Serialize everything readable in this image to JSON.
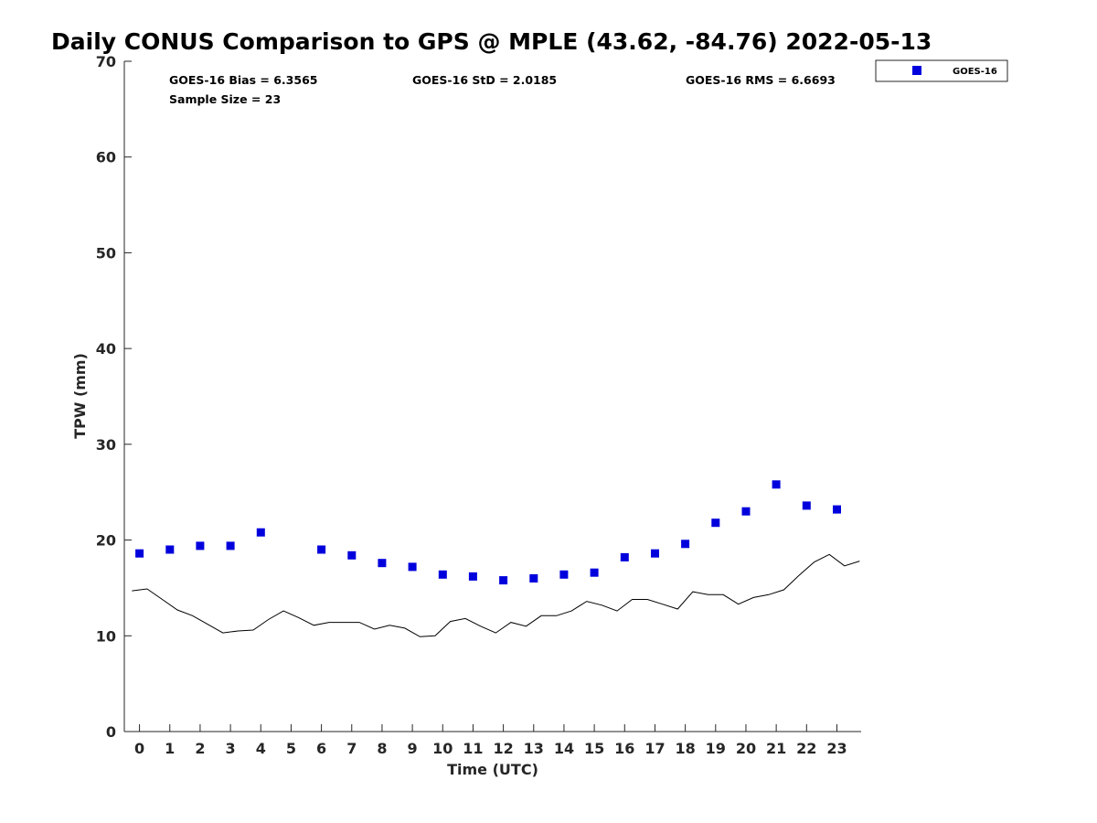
{
  "chart_data": {
    "type": "scatter",
    "title": "Daily CONUS Comparison to GPS @ MPLE (43.62, -84.76) 2022-05-13",
    "xlabel": "Time (UTC)",
    "ylabel": "TPW (mm)",
    "xlim": [
      -0.5,
      23.8
    ],
    "ylim": [
      0,
      70
    ],
    "xticks": [
      0,
      1,
      2,
      3,
      4,
      5,
      6,
      7,
      8,
      9,
      10,
      11,
      12,
      13,
      14,
      15,
      16,
      17,
      18,
      19,
      20,
      21,
      22,
      23
    ],
    "xtick_labels": [
      "0",
      "1",
      "2",
      "3",
      "4",
      "5",
      "6",
      "7",
      "8",
      "9",
      "10",
      "11",
      "12",
      "13",
      "14",
      "15",
      "16",
      "17",
      "18",
      "19",
      "20",
      "21",
      "22",
      "23"
    ],
    "yticks": [
      0,
      10,
      20,
      30,
      40,
      50,
      60,
      70
    ],
    "ytick_labels": [
      "0",
      "10",
      "20",
      "30",
      "40",
      "50",
      "60",
      "70"
    ],
    "grid": false,
    "legend_position": "top-right-outside",
    "stats": {
      "bias": "GOES-16 Bias = 6.3565",
      "std": "GOES-16 StD = 2.0185",
      "rms": "GOES-16 RMS = 6.6693",
      "sample": "Sample Size = 23"
    },
    "series": [
      {
        "name": "GOES-16",
        "kind": "scatter",
        "marker": "square",
        "color": "#0000dd",
        "x": [
          0,
          1,
          2,
          3,
          4,
          6,
          7,
          8,
          9,
          10,
          11,
          12,
          13,
          14,
          15,
          16,
          17,
          18,
          19,
          20,
          21,
          22,
          23
        ],
        "y": [
          18.6,
          19.0,
          19.4,
          19.4,
          20.8,
          19.0,
          18.4,
          17.6,
          17.2,
          16.4,
          16.2,
          15.8,
          16.0,
          16.4,
          16.6,
          18.2,
          18.6,
          19.6,
          21.8,
          23.0,
          25.8,
          23.6,
          23.2
        ]
      },
      {
        "kind": "line",
        "color": "#000000",
        "x": [
          -0.25,
          0.25,
          0.75,
          1.25,
          1.75,
          2.25,
          2.75,
          3.25,
          3.75,
          4.25,
          4.75,
          5.25,
          5.75,
          6.25,
          6.75,
          7.25,
          7.75,
          8.25,
          8.75,
          9.25,
          9.75,
          10.25,
          10.75,
          11.25,
          11.75,
          12.25,
          12.75,
          13.25,
          13.75,
          14.25,
          14.75,
          15.25,
          15.75,
          16.25,
          16.75,
          17.25,
          17.75,
          18.25,
          18.75,
          19.25,
          19.75,
          20.25,
          20.75,
          21.25,
          21.75,
          22.25,
          22.75,
          23.25,
          23.75
        ],
        "y": [
          14.7,
          14.9,
          13.8,
          12.7,
          12.1,
          11.2,
          10.3,
          10.5,
          10.6,
          11.7,
          12.6,
          11.9,
          11.1,
          11.4,
          11.4,
          11.4,
          10.7,
          11.1,
          10.8,
          9.9,
          10.0,
          11.5,
          11.8,
          11.0,
          10.3,
          11.4,
          11.0,
          12.1,
          12.1,
          12.6,
          13.6,
          13.2,
          12.6,
          13.8,
          13.8,
          13.3,
          12.8,
          14.6,
          14.3,
          14.3,
          13.3,
          14.0,
          14.3,
          14.8,
          16.3,
          17.7,
          18.5,
          17.3,
          17.8
        ]
      }
    ]
  }
}
